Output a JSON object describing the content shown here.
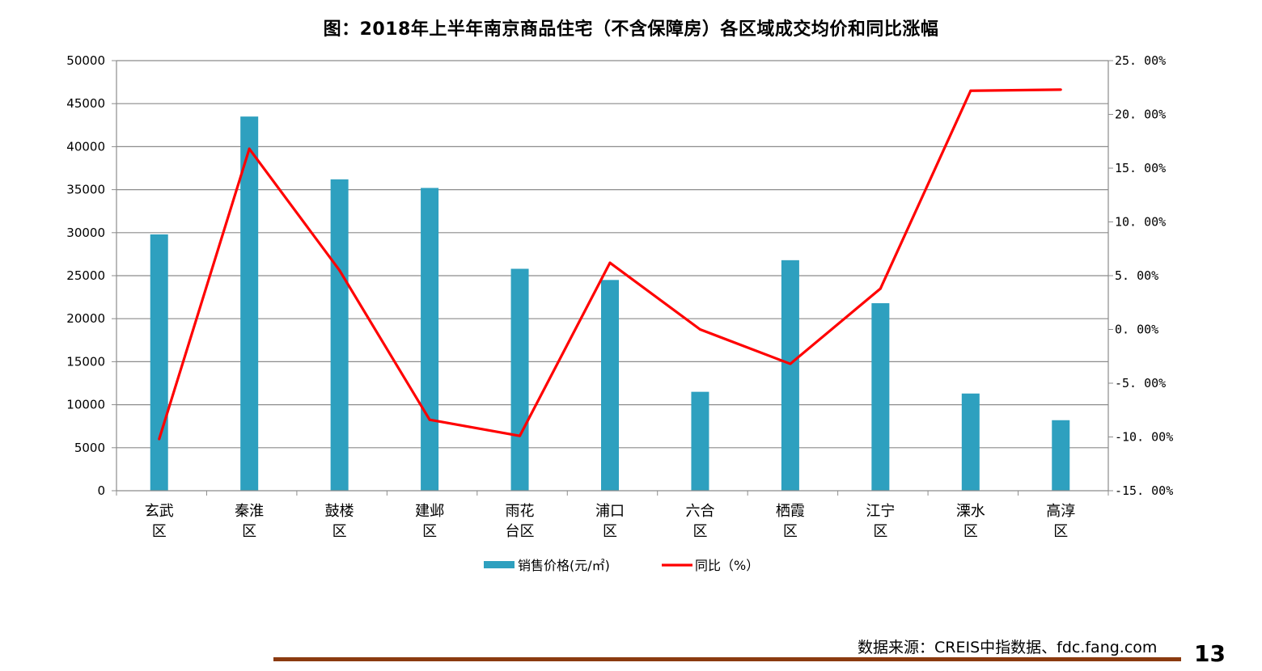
{
  "chart_data": {
    "type": "bar",
    "title": "图：2018年上半年南京商品住宅（不含保障房）各区域成交均价和同比涨幅",
    "categories": [
      [
        "玄武",
        "区"
      ],
      [
        "秦淮",
        "区"
      ],
      [
        "鼓楼",
        "区"
      ],
      [
        "建邺",
        "区"
      ],
      [
        "雨花",
        "台区"
      ],
      [
        "浦口",
        "区"
      ],
      [
        "六合",
        "区"
      ],
      [
        "栖霞",
        "区"
      ],
      [
        "江宁",
        "区"
      ],
      [
        "溧水",
        "区"
      ],
      [
        "高淳",
        "区"
      ]
    ],
    "series": [
      {
        "name": "销售价格(元/㎡)",
        "type": "bar",
        "axis": "left",
        "color": "#2ea0bf",
        "values": [
          29800,
          43500,
          36200,
          35200,
          25800,
          24500,
          11500,
          26800,
          21800,
          11300,
          8200
        ]
      },
      {
        "name": "同比（%）",
        "type": "line",
        "axis": "right",
        "color": "#ff0000",
        "values": [
          -10.2,
          16.8,
          5.5,
          -8.4,
          -9.9,
          6.2,
          0.0,
          -3.2,
          3.8,
          22.2,
          22.3
        ]
      }
    ],
    "ylim_left": [
      0,
      50000
    ],
    "yticks_left": [
      "0",
      "5000",
      "10000",
      "15000",
      "20000",
      "25000",
      "30000",
      "35000",
      "40000",
      "45000",
      "50000"
    ],
    "ylim_right": [
      -15,
      25
    ],
    "yticks_right": [
      "-15.00%",
      "-10.00%",
      "-5.00%",
      "0.00%",
      "5.00%",
      "10.00%",
      "15.00%",
      "20.00%",
      "25.00%"
    ],
    "grid": true,
    "legend_position": "bottom"
  },
  "footer": {
    "source": "数据来源：CREIS中指数据、fdc.fang.com",
    "page_number": "13"
  }
}
